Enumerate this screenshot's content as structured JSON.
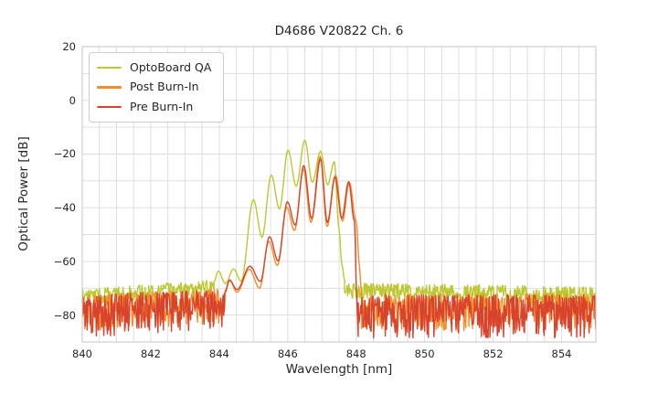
{
  "chart_data": {
    "type": "line",
    "title": "D4686 V20822 Ch. 6",
    "xlabel": "Wavelength [nm]",
    "ylabel": "Optical Power [dB]",
    "xlim": [
      840,
      855
    ],
    "ylim": [
      -90,
      20
    ],
    "xticks": [
      {
        "v": 840,
        "label": "840"
      },
      {
        "v": 842,
        "label": "842"
      },
      {
        "v": 844,
        "label": "844"
      },
      {
        "v": 846,
        "label": "846"
      },
      {
        "v": 848,
        "label": "848"
      },
      {
        "v": 850,
        "label": "850"
      },
      {
        "v": 852,
        "label": "852"
      },
      {
        "v": 854,
        "label": "854"
      }
    ],
    "yticks": [
      {
        "v": 20,
        "label": "20"
      },
      {
        "v": 0,
        "label": "0"
      },
      {
        "v": -20,
        "label": "−20"
      },
      {
        "v": -40,
        "label": "−40"
      },
      {
        "v": -60,
        "label": "−60"
      },
      {
        "v": -80,
        "label": "−80"
      }
    ],
    "grid": {
      "x_step": 0.5,
      "y_step": 10,
      "color": "#dcdcdc",
      "spine_color": "#c9c9c9"
    },
    "legend": {
      "loc": "upper left"
    },
    "noise_seed": 7,
    "series": [
      {
        "name": "OptoBoard QA",
        "color": "#bdc831",
        "noise_left": {
          "from": 840.0,
          "to": 843.85,
          "top": [
            -70.5,
            -66.8
          ],
          "bottom": [
            -76.5,
            -71.8
          ]
        },
        "signal_points": [
          [
            843.85,
            -67.5
          ],
          [
            843.97,
            -63.6
          ],
          [
            844.18,
            -68.2
          ],
          [
            844.42,
            -62.8
          ],
          [
            844.64,
            -67.4
          ],
          [
            845.0,
            -37.0
          ],
          [
            845.25,
            -51.0
          ],
          [
            845.52,
            -27.8
          ],
          [
            845.76,
            -40.5
          ],
          [
            846.01,
            -18.5
          ],
          [
            846.25,
            -32.0
          ],
          [
            846.5,
            -14.8
          ],
          [
            846.72,
            -30.5
          ],
          [
            846.96,
            -19.0
          ],
          [
            847.17,
            -31.5
          ],
          [
            847.36,
            -22.8
          ],
          [
            847.5,
            -48.0
          ],
          [
            847.58,
            -61.0
          ],
          [
            847.66,
            -67.0
          ]
        ],
        "noise_right": {
          "from": 847.66,
          "to": 855.0,
          "top": [
            -68.0,
            -69.5
          ],
          "bottom": [
            -74.0,
            -77.5
          ]
        }
      },
      {
        "name": "Post Burn-In",
        "color": "#f68d2a",
        "noise_left": {
          "from": 840.0,
          "to": 844.18,
          "top": [
            -72.5,
            -70.0
          ],
          "bottom": [
            -86.0,
            -83.0
          ]
        },
        "signal_points": [
          [
            844.18,
            -71.5
          ],
          [
            844.3,
            -66.8
          ],
          [
            844.52,
            -71.5
          ],
          [
            844.88,
            -63.0
          ],
          [
            845.18,
            -70.0
          ],
          [
            845.45,
            -52.5
          ],
          [
            845.7,
            -61.5
          ],
          [
            845.97,
            -39.8
          ],
          [
            846.2,
            -48.5
          ],
          [
            846.46,
            -25.5
          ],
          [
            846.68,
            -45.5
          ],
          [
            846.95,
            -20.8
          ],
          [
            847.15,
            -47.0
          ],
          [
            847.4,
            -27.8
          ],
          [
            847.6,
            -45.0
          ],
          [
            847.8,
            -30.5
          ],
          [
            848.0,
            -45.0
          ],
          [
            848.1,
            -62.0
          ],
          [
            848.16,
            -74.0
          ]
        ],
        "noise_right": {
          "from": 848.16,
          "to": 855.0,
          "top": [
            -72.0,
            -72.0
          ],
          "bottom": [
            -86.0,
            -86.0
          ]
        }
      },
      {
        "name": "Pre Burn-In",
        "color": "#d7432d",
        "noise_left": {
          "from": 840.0,
          "to": 844.15,
          "top": [
            -72.5,
            -70.5
          ],
          "bottom": [
            -88.5,
            -85.0
          ]
        },
        "signal_points": [
          [
            844.15,
            -72.0
          ],
          [
            844.3,
            -67.0
          ],
          [
            844.52,
            -70.5
          ],
          [
            844.9,
            -61.8
          ],
          [
            845.2,
            -67.5
          ],
          [
            845.47,
            -50.8
          ],
          [
            845.72,
            -59.8
          ],
          [
            845.99,
            -37.8
          ],
          [
            846.22,
            -46.5
          ],
          [
            846.47,
            -24.3
          ],
          [
            846.7,
            -44.0
          ],
          [
            846.96,
            -21.8
          ],
          [
            847.16,
            -45.5
          ],
          [
            847.38,
            -28.5
          ],
          [
            847.58,
            -44.0
          ],
          [
            847.78,
            -30.3
          ],
          [
            847.95,
            -45.0
          ],
          [
            848.02,
            -74.0
          ],
          [
            848.06,
            -88.0
          ]
        ],
        "noise_right": {
          "from": 848.06,
          "to": 855.0,
          "top": [
            -72.5,
            -72.5
          ],
          "bottom": [
            -88.5,
            -88.5
          ]
        }
      }
    ]
  }
}
